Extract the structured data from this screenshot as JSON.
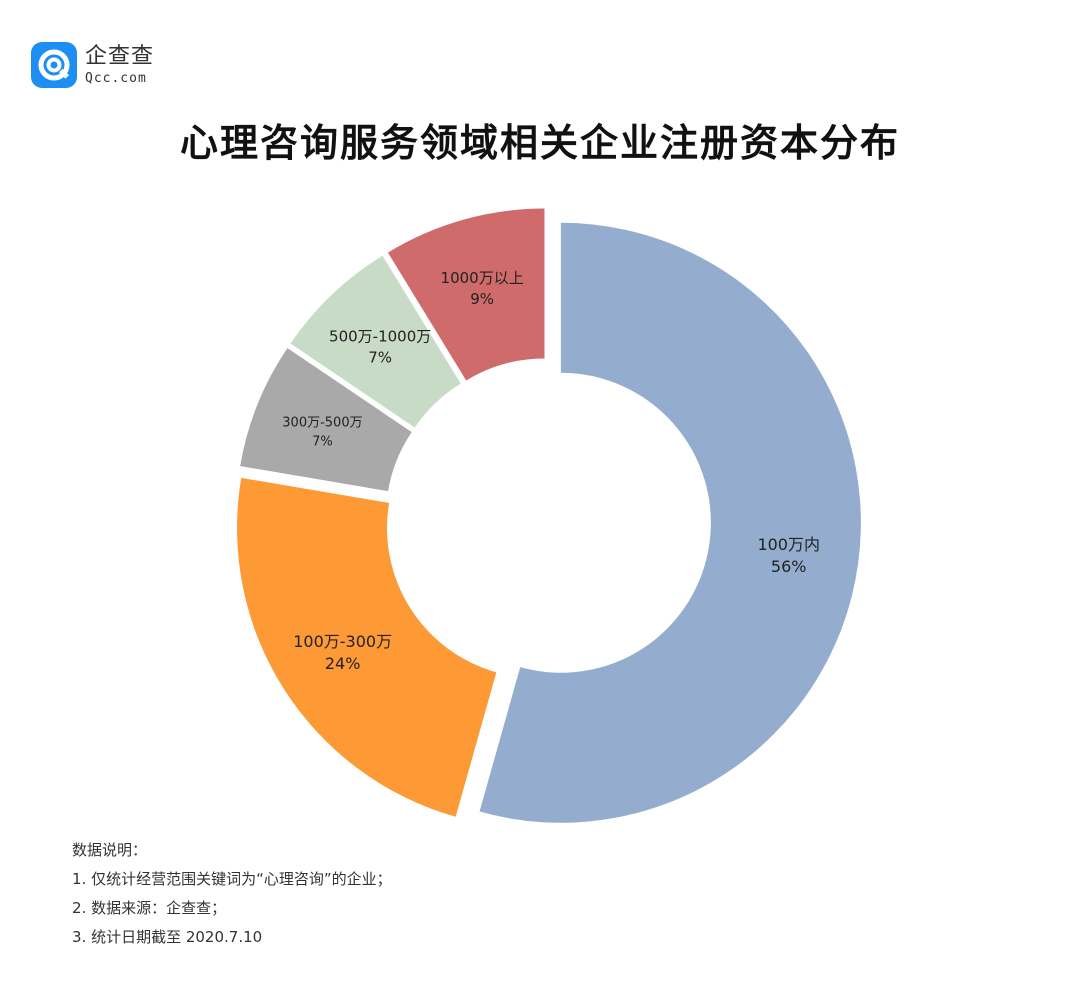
{
  "logo": {
    "name_cn": "企查查",
    "name_en": "Qcc.com"
  },
  "chart_data": {
    "type": "pie",
    "title": "心理咨询服务领域相关企业注册资本分布",
    "categories": [
      "100万内",
      "100万-300万",
      "300万-500万",
      "500万-1000万",
      "1000万以上"
    ],
    "values": [
      56,
      24,
      7,
      7,
      9
    ],
    "percent_labels": [
      "56%",
      "24%",
      "7%",
      "7%",
      "9%"
    ],
    "colors": [
      "#94adcf",
      "#fd9a36",
      "#a9a9a9",
      "#c8dbc6",
      "#cf6b6b"
    ],
    "donut": true,
    "exploded": true
  },
  "notes": {
    "heading": "数据说明：",
    "items": [
      "1. 仅统计经营范围关键词为“心理咨询”的企业；",
      "2. 数据来源：企查查；",
      "3. 统计日期截至 2020.7.10"
    ]
  }
}
